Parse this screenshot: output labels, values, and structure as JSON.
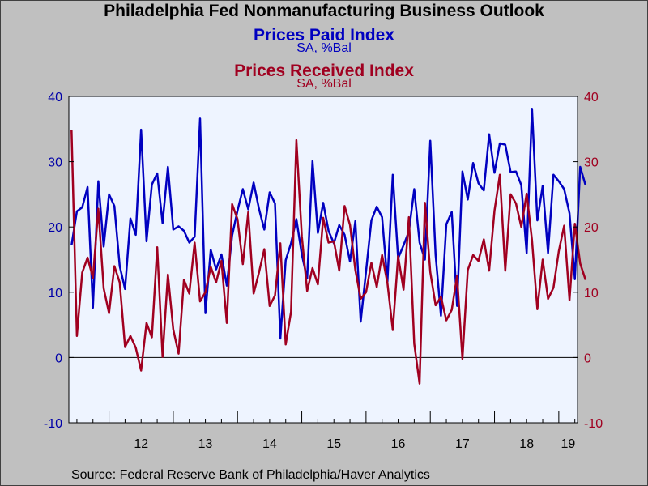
{
  "chart_data": {
    "type": "line",
    "title": "Philadelphia Fed Nonmanufacturing Business Outlook",
    "x_start": "2011-06",
    "x_end": "2019-04",
    "x_tick_labels": [
      {
        "label": "12",
        "year": 2012
      },
      {
        "label": "13",
        "year": 2013
      },
      {
        "label": "14",
        "year": 2014
      },
      {
        "label": "15",
        "year": 2015
      },
      {
        "label": "16",
        "year": 2016
      },
      {
        "label": "17",
        "year": 2017
      },
      {
        "label": "18",
        "year": 2018
      },
      {
        "label": "19",
        "year": 2019
      }
    ],
    "y_left": {
      "ylim": [
        -10,
        40
      ],
      "ticks": [
        -10,
        0,
        10,
        20,
        30,
        40
      ],
      "color": "#0000a8"
    },
    "y_right": {
      "ylim": [
        -10,
        40
      ],
      "ticks": [
        -10,
        0,
        10,
        20,
        30,
        40
      ],
      "color": "#a00020"
    },
    "grid": false,
    "zero_line": true,
    "background": "#eef4ff",
    "series": [
      {
        "name": "Prices Paid Index",
        "subtitle": "SA, %Bal",
        "axis": "left",
        "color": "#0000c0",
        "values": [
          17.2,
          22.4,
          23.0,
          26.1,
          7.6,
          27.0,
          17.0,
          25.0,
          23.2,
          14.0,
          10.5,
          21.3,
          18.8,
          34.9,
          17.8,
          26.5,
          28.2,
          20.6,
          29.2,
          19.6,
          20.1,
          19.4,
          17.6,
          18.5,
          36.6,
          6.8,
          16.5,
          13.5,
          15.8,
          11.0,
          18.7,
          22.5,
          25.8,
          22.7,
          26.8,
          22.8,
          19.6,
          25.3,
          23.6,
          2.9,
          14.9,
          17.5,
          21.2,
          15.8,
          12.1,
          30.1,
          19.1,
          23.7,
          19.4,
          17.5,
          20.3,
          18.8,
          14.7,
          20.9,
          5.5,
          13.2,
          21.0,
          23.1,
          21.5,
          11.6,
          28.0,
          15.2,
          17.2,
          19.3,
          25.8,
          17.6,
          15.0,
          33.2,
          15.7,
          6.4,
          20.4,
          22.3,
          7.9,
          28.5,
          24.2,
          29.8,
          26.7,
          25.6,
          34.2,
          28.3,
          32.8,
          32.6,
          28.4,
          28.5,
          26.4,
          16.0,
          38.1,
          21.0,
          26.3,
          16.0,
          28.0,
          27.0,
          25.8,
          22.1,
          12.0,
          29.2,
          26.4
        ]
      },
      {
        "name": "Prices Received Index",
        "subtitle": "SA, %Bal",
        "axis": "right",
        "color": "#a00020",
        "values": [
          34.9,
          3.3,
          13.0,
          15.3,
          12.2,
          22.8,
          10.6,
          6.8,
          14.0,
          11.5,
          1.6,
          3.3,
          1.5,
          -2.0,
          5.3,
          3.1,
          16.9,
          0.1,
          12.7,
          4.3,
          0.6,
          11.9,
          9.8,
          17.6,
          8.6,
          10.0,
          13.9,
          11.5,
          14.8,
          5.3,
          23.5,
          21.2,
          14.3,
          22.3,
          9.8,
          13.0,
          16.6,
          7.9,
          9.5,
          17.5,
          2.0,
          7.0,
          33.3,
          18.6,
          10.2,
          13.7,
          11.2,
          21.4,
          17.6,
          17.8,
          13.3,
          23.2,
          20.3,
          13.4,
          9.0,
          10.0,
          14.5,
          10.8,
          15.7,
          11.4,
          4.2,
          15.5,
          10.4,
          21.5,
          2.1,
          -4.0,
          23.7,
          13.1,
          8.0,
          9.3,
          5.7,
          7.3,
          12.5,
          -0.2,
          13.4,
          15.7,
          14.8,
          18.1,
          13.3,
          22.5,
          28.0,
          13.3,
          25.0,
          23.6,
          20.0,
          25.1,
          18.0,
          7.4,
          15.0,
          9.0,
          10.7,
          16.3,
          20.2,
          8.8,
          20.5,
          14.4,
          11.9
        ]
      }
    ]
  },
  "source_text": "Source:  Federal Reserve Bank of Philadelphia/Haver Analytics"
}
